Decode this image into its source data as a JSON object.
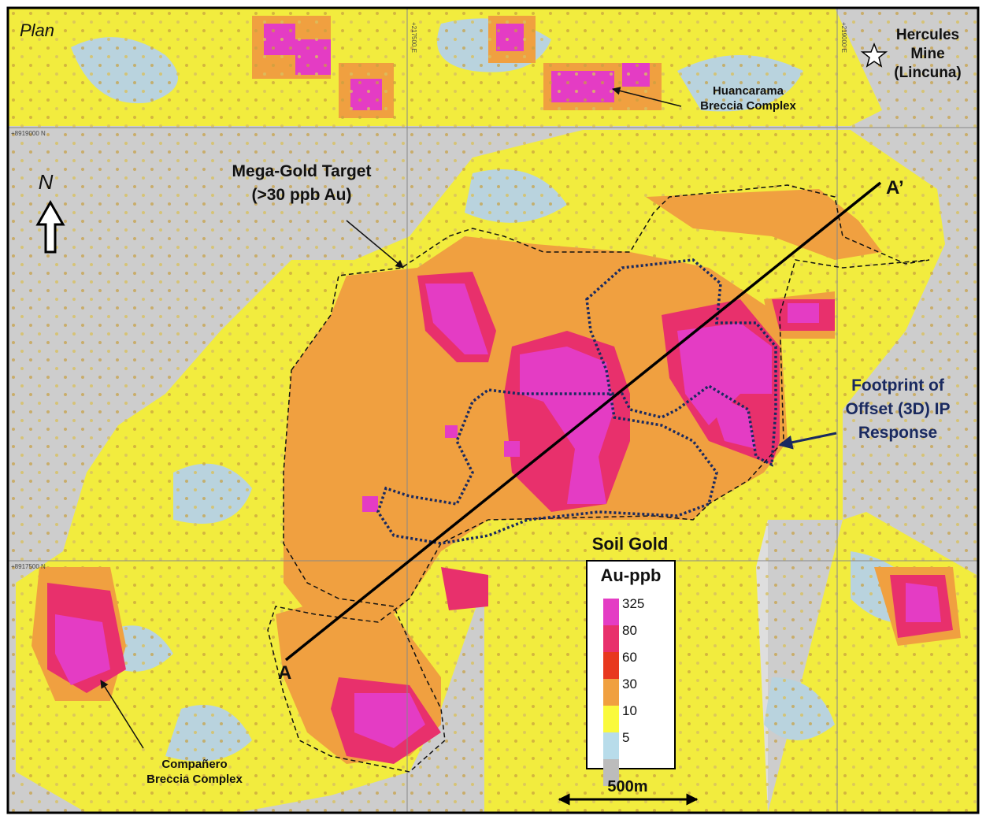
{
  "map": {
    "title": "Plan",
    "grid_labels": {
      "easting_1": "+217500 E",
      "easting_2": "+219000 E",
      "northing_1": "+8919000 N",
      "northing_2": "+8917500 N"
    },
    "north": "N",
    "labels": {
      "hercules": [
        "Hercules",
        "Mine",
        "(Lincuna)"
      ],
      "huancarama": [
        "Huancarama",
        "Breccia Complex"
      ],
      "mega_gold": [
        "Mega-Gold Target",
        "(>30 ppb Au)"
      ],
      "footprint": [
        "Footprint of",
        "Offset (3D) IP",
        "Response"
      ],
      "companero": [
        "Compañero",
        "Breccia Complex"
      ],
      "section_start": "A",
      "section_end": "A’"
    },
    "legend": {
      "title": "Soil Gold",
      "unit": "Au-ppb",
      "items": [
        {
          "label": 325,
          "color": "#e43cc4"
        },
        {
          "label": 80,
          "color": "#e8306c"
        },
        {
          "label": 60,
          "color": "#e8381e"
        },
        {
          "label": 30,
          "color": "#f0a040"
        },
        {
          "label": 10,
          "color": "#fafa3c"
        },
        {
          "label": 5,
          "color": "#b8dcea"
        }
      ],
      "base_color": "#bcbcbc"
    },
    "scale_bar": "500m"
  }
}
